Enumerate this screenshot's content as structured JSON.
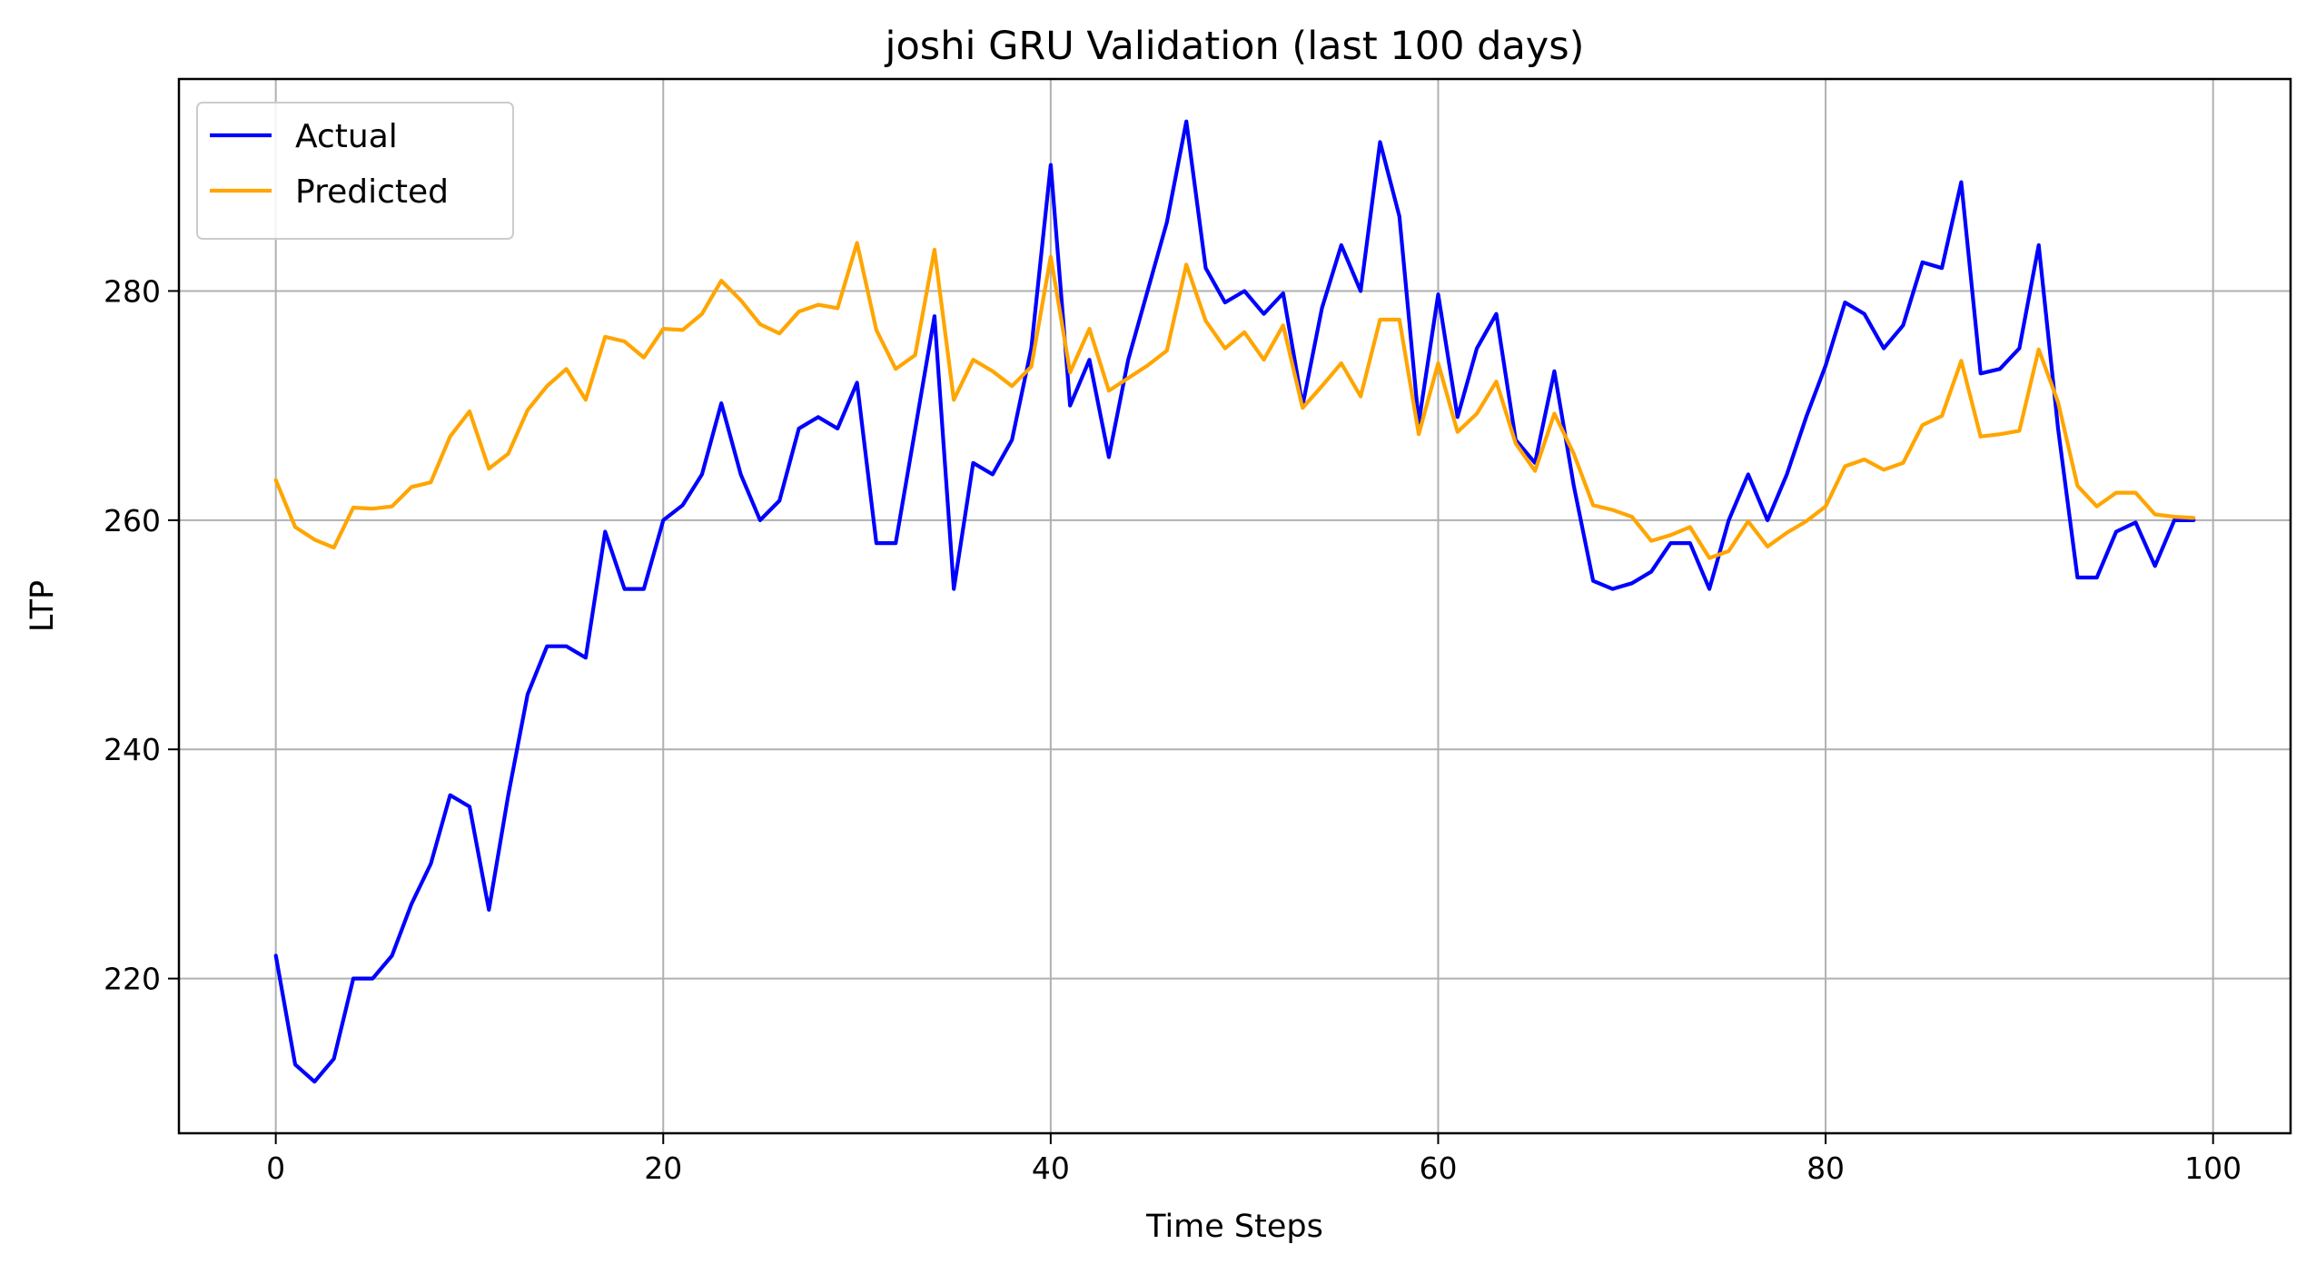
{
  "chart_data": {
    "type": "line",
    "title": "joshi GRU Validation (last 100 days)",
    "xlabel": "Time Steps",
    "ylabel": "LTP",
    "xlim": [
      -5,
      104
    ],
    "ylim": [
      206.5,
      298.5
    ],
    "xticks": [
      0,
      20,
      40,
      60,
      80,
      100
    ],
    "yticks": [
      220,
      240,
      260,
      280
    ],
    "grid": true,
    "legend_position": "top-left",
    "x": [
      0,
      1,
      2,
      3,
      4,
      5,
      6,
      7,
      8,
      9,
      10,
      11,
      12,
      13,
      14,
      15,
      16,
      17,
      18,
      19,
      20,
      21,
      22,
      23,
      24,
      25,
      26,
      27,
      28,
      29,
      30,
      31,
      32,
      33,
      34,
      35,
      36,
      37,
      38,
      39,
      40,
      41,
      42,
      43,
      44,
      45,
      46,
      47,
      48,
      49,
      50,
      51,
      52,
      53,
      54,
      55,
      56,
      57,
      58,
      59,
      60,
      61,
      62,
      63,
      64,
      65,
      66,
      67,
      68,
      69,
      70,
      71,
      72,
      73,
      74,
      75,
      76,
      77,
      78,
      79,
      80,
      81,
      82,
      83,
      84,
      85,
      86,
      87,
      88,
      89,
      90,
      91,
      92,
      93,
      94,
      95,
      96,
      97,
      98,
      99
    ],
    "series": [
      {
        "name": "Actual",
        "color": "#0000ff",
        "values": [
          222,
          212.5,
          211,
          213,
          220,
          220,
          222,
          226.5,
          230,
          236,
          235,
          226,
          236,
          244.8,
          249,
          249,
          248,
          259,
          254,
          254,
          260,
          261.3,
          264,
          270.2,
          264,
          260,
          261.7,
          268,
          269,
          268,
          272,
          258,
          258,
          267.9,
          277.8,
          254,
          265,
          264,
          267,
          275,
          291,
          270,
          274,
          265.5,
          274,
          280,
          286,
          294.8,
          282,
          279,
          280,
          278,
          279.8,
          270,
          278.5,
          284,
          280,
          293,
          286.5,
          268.5,
          279.7,
          269,
          275,
          278,
          267,
          265,
          273,
          263,
          254.7,
          254,
          254.5,
          255.5,
          258,
          258,
          254,
          260,
          264,
          260,
          264,
          269,
          273.5,
          279,
          278,
          275,
          277,
          282.5,
          282,
          289.5,
          272.8,
          273.2,
          275,
          284,
          268,
          255,
          255,
          259,
          259.8,
          256,
          260,
          260
        ]
      },
      {
        "name": "Predicted",
        "color": "#ffa500",
        "values": [
          263.5,
          259.4,
          258.3,
          257.6,
          261.1,
          261,
          261.2,
          262.9,
          263.3,
          267.3,
          269.5,
          264.5,
          265.8,
          269.6,
          271.7,
          273.2,
          270.5,
          276,
          275.6,
          274.2,
          276.7,
          276.6,
          278,
          280.9,
          279.2,
          277.1,
          276.3,
          278.2,
          278.8,
          278.5,
          284.2,
          276.6,
          273.2,
          274.4,
          283.6,
          270.5,
          274,
          273,
          271.7,
          273.4,
          283,
          272.9,
          276.7,
          271.3,
          272.4,
          273.5,
          274.8,
          282.3,
          277.4,
          275,
          276.4,
          274,
          277,
          269.8,
          271.7,
          273.7,
          270.8,
          277.5,
          277.5,
          267.5,
          273.7,
          267.7,
          269.3,
          272.1,
          266.7,
          264.3,
          269.3,
          265.8,
          261.3,
          260.9,
          260.3,
          258.2,
          258.7,
          259.4,
          256.7,
          257.3,
          259.9,
          257.7,
          258.9,
          259.9,
          261.2,
          264.7,
          265.3,
          264.4,
          265,
          268.3,
          269.1,
          273.9,
          267.3,
          267.5,
          267.8,
          274.9,
          270.3,
          263,
          261.2,
          262.4,
          262.4,
          260.5,
          260.3,
          260.2
        ]
      }
    ]
  }
}
